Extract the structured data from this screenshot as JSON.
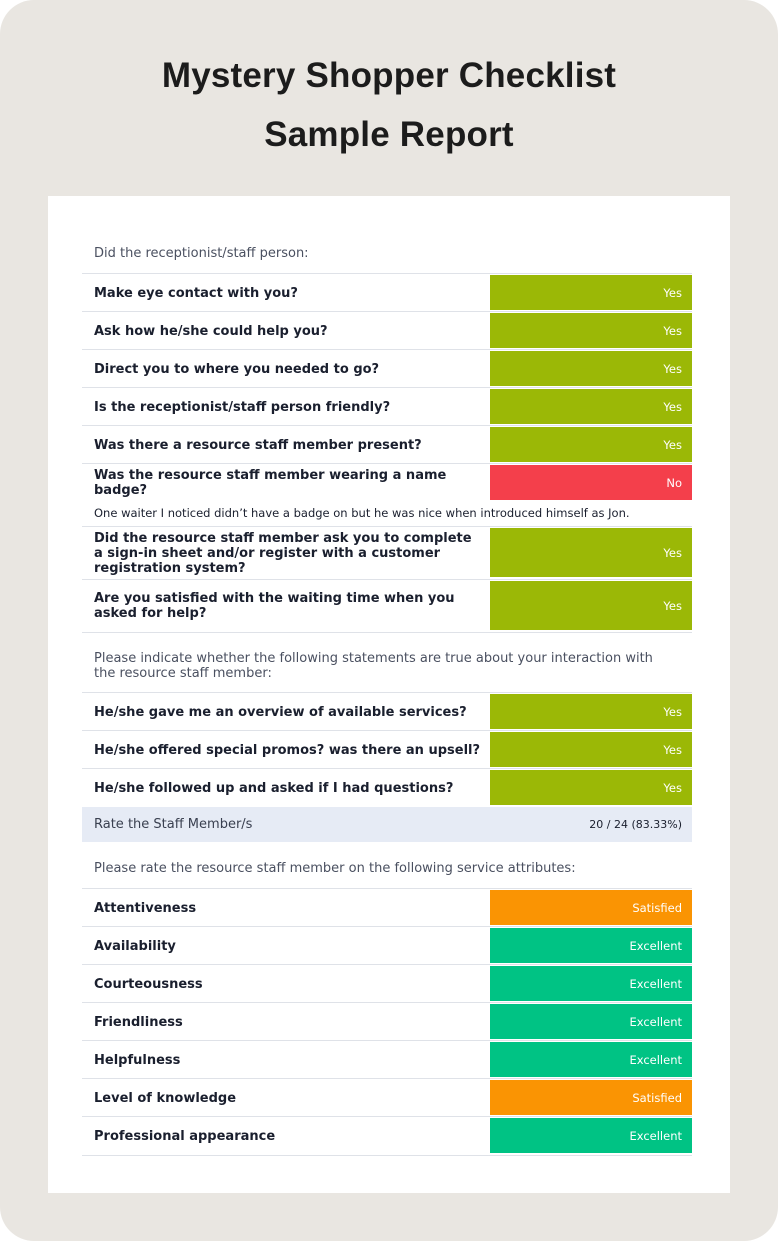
{
  "title_line1": "Mystery Shopper Checklist",
  "title_line2": "Sample Report",
  "colors": {
    "yes": "#9bb806",
    "no": "#f43f4b",
    "satisfied": "#fa9403",
    "excellent": "#00c384",
    "frame": "#e9e6e1"
  },
  "section1": {
    "intro": "Did the receptionist/staff person:",
    "rows": [
      {
        "question": "Make eye contact with you?",
        "answer": "Yes"
      },
      {
        "question": "Ask how he/she could help you?",
        "answer": "Yes"
      },
      {
        "question": "Direct you to where you needed to go?",
        "answer": "Yes"
      },
      {
        "question": "Is the receptionist/staff person friendly?",
        "answer": "Yes"
      },
      {
        "question": "Was there a resource staff member present?",
        "answer": "Yes"
      },
      {
        "question": "Was the resource staff member wearing a name badge?",
        "answer": "No"
      },
      {
        "question": "Did the resource staff member ask you to complete a sign-in sheet and/or register with a customer registration system?",
        "answer": "Yes"
      },
      {
        "question": "Are you satisfied with the waiting time when you asked for help?",
        "answer": "Yes"
      }
    ],
    "note": "One waiter I noticed didn’t have a badge on but he was nice when introduced himself as Jon."
  },
  "section2": {
    "intro": "Please indicate whether the following statements are true about your interaction with the resource staff member:",
    "rows": [
      {
        "question": "He/she gave me an overview of available services?",
        "answer": "Yes"
      },
      {
        "question": "He/she offered special promos? was there an upsell?",
        "answer": "Yes"
      },
      {
        "question": "He/she followed up and asked if I had questions?",
        "answer": "Yes"
      }
    ]
  },
  "rating": {
    "label": "Rate the Staff Member/s",
    "value": "20 / 24 (83.33%)"
  },
  "section3": {
    "intro": "Please rate the resource  staff member on the following service attributes:",
    "rows": [
      {
        "question": "Attentiveness",
        "answer": "Satisfied"
      },
      {
        "question": "Availability",
        "answer": "Excellent"
      },
      {
        "question": "Courteousness",
        "answer": "Excellent"
      },
      {
        "question": "Friendliness",
        "answer": "Excellent"
      },
      {
        "question": "Helpfulness",
        "answer": "Excellent"
      },
      {
        "question": "Level of knowledge",
        "answer": "Satisfied"
      },
      {
        "question": "Professional appearance",
        "answer": "Excellent"
      }
    ]
  }
}
